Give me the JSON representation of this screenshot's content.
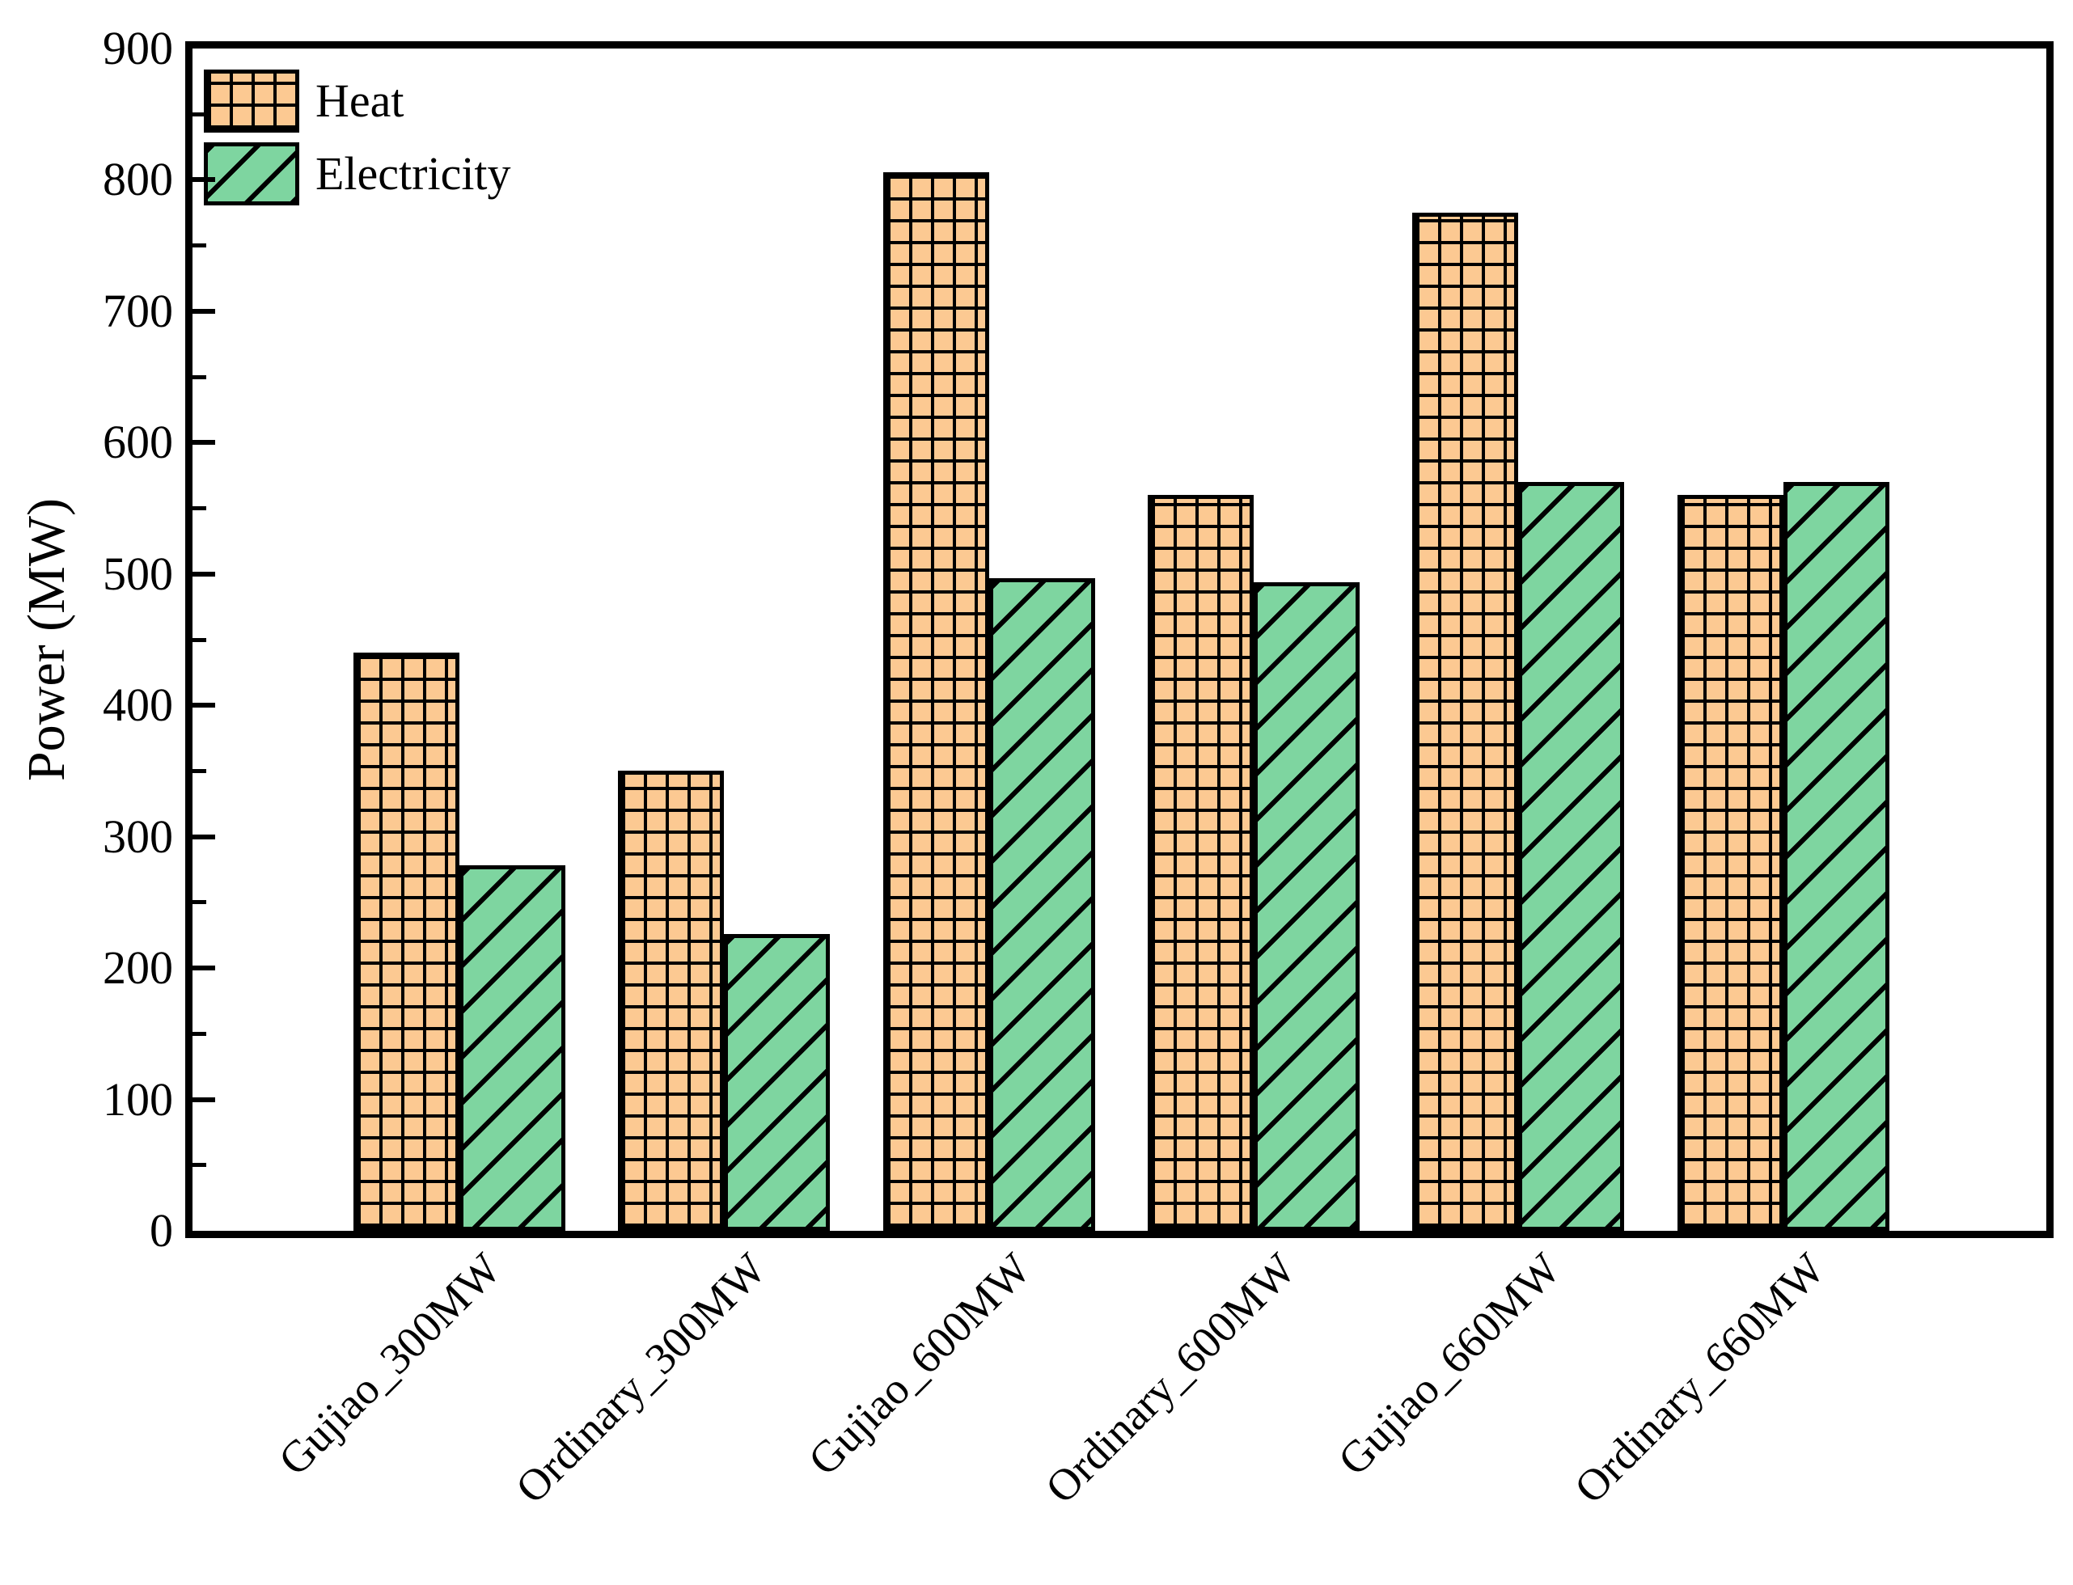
{
  "chart_data": {
    "type": "bar",
    "title": "",
    "ylabel": "Power (MW)",
    "xlabel": "",
    "ylim": [
      0,
      900
    ],
    "yticks": [
      0,
      100,
      200,
      300,
      400,
      500,
      600,
      700,
      800,
      900
    ],
    "ytick_step": 100,
    "minor_tick_step": 50,
    "grid": false,
    "legend_position": "top-left",
    "axis_color": "#000000",
    "categories": [
      "Gujiao_300MW",
      "Ordinary_300MW",
      "Gujiao_600MW",
      "Ordinary_600MW",
      "Gujiao_660MW",
      "Ordinary_660MW"
    ],
    "series": [
      {
        "name": "Heat",
        "hatch": "grid",
        "color": "#FCC992",
        "values": [
          440,
          350,
          806,
          560,
          775,
          560
        ]
      },
      {
        "name": "Electricity",
        "hatch": "diagonal",
        "color": "#7ED5A0",
        "values": [
          278,
          226,
          497,
          494,
          570,
          570
        ]
      }
    ]
  }
}
